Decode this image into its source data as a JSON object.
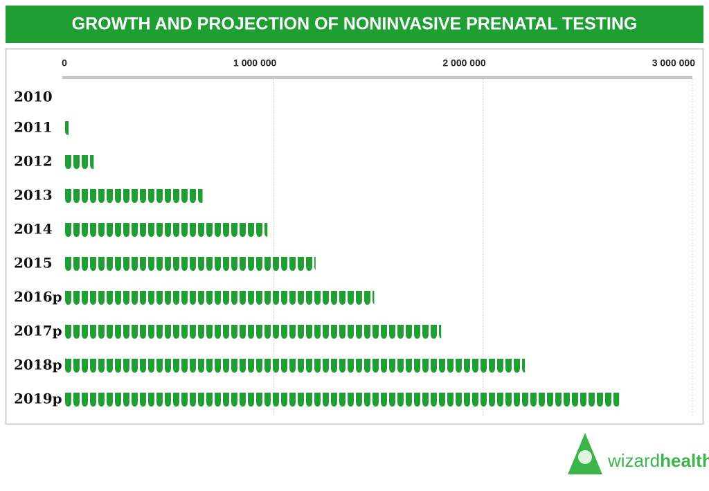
{
  "chart_data": {
    "type": "bar",
    "title": "GROWTH AND PROJECTION OF NONINVASIVE PRENATAL TESTING",
    "categories": [
      "2010",
      "2011",
      "2012",
      "2013",
      "2014",
      "2015",
      "2016p",
      "2017p",
      "2018p",
      "2019p"
    ],
    "values": [
      0,
      20000,
      140000,
      660000,
      970000,
      1200000,
      1480000,
      1800000,
      2200000,
      2650000
    ],
    "color": "#1f9e34",
    "xlim": [
      0,
      3000000
    ],
    "xticks": [
      0,
      {
        "value": 1000000,
        "label": "1 000 000"
      },
      {
        "value": 2000000,
        "label": "2 000 000"
      },
      {
        "value": 3000000,
        "label": "3 000 000"
      }
    ],
    "grid": true
  },
  "logo": {
    "prefix": "wizard",
    "suffix": "health"
  }
}
